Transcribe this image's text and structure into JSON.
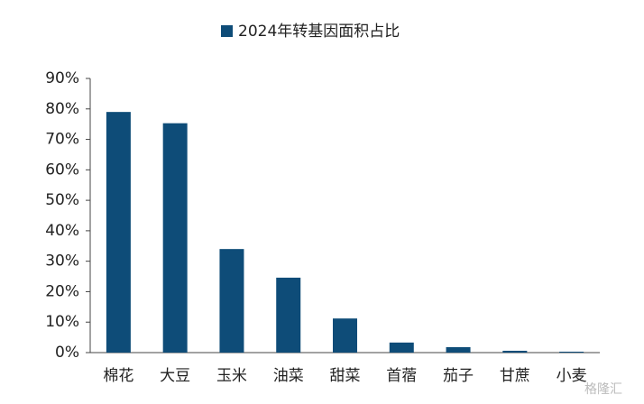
{
  "chart_data": {
    "type": "bar",
    "categories": [
      "棉花",
      "大豆",
      "玉米",
      "油菜",
      "甜菜",
      "首蓿",
      "茄子",
      "甘蔗",
      "小麦"
    ],
    "series": [
      {
        "name": "2024年转基因面积占比",
        "color": "#0e4c78",
        "values": [
          79,
          75.3,
          34,
          24.6,
          11.2,
          3.3,
          1.8,
          0.6,
          0.3
        ]
      }
    ],
    "ylim": [
      0,
      90
    ],
    "yticks": [
      {
        "value": 0,
        "label": "0%"
      },
      {
        "value": 10,
        "label": "10%"
      },
      {
        "value": 20,
        "label": "20%"
      },
      {
        "value": 30,
        "label": "30%"
      },
      {
        "value": 40,
        "label": "40%"
      },
      {
        "value": 50,
        "label": "50%"
      },
      {
        "value": 60,
        "label": "60%"
      },
      {
        "value": 70,
        "label": "70%"
      },
      {
        "value": 80,
        "label": "80%"
      },
      {
        "value": 90,
        "label": "90%"
      }
    ],
    "grid": false,
    "legend": "top",
    "watermark": "格隆汇"
  }
}
